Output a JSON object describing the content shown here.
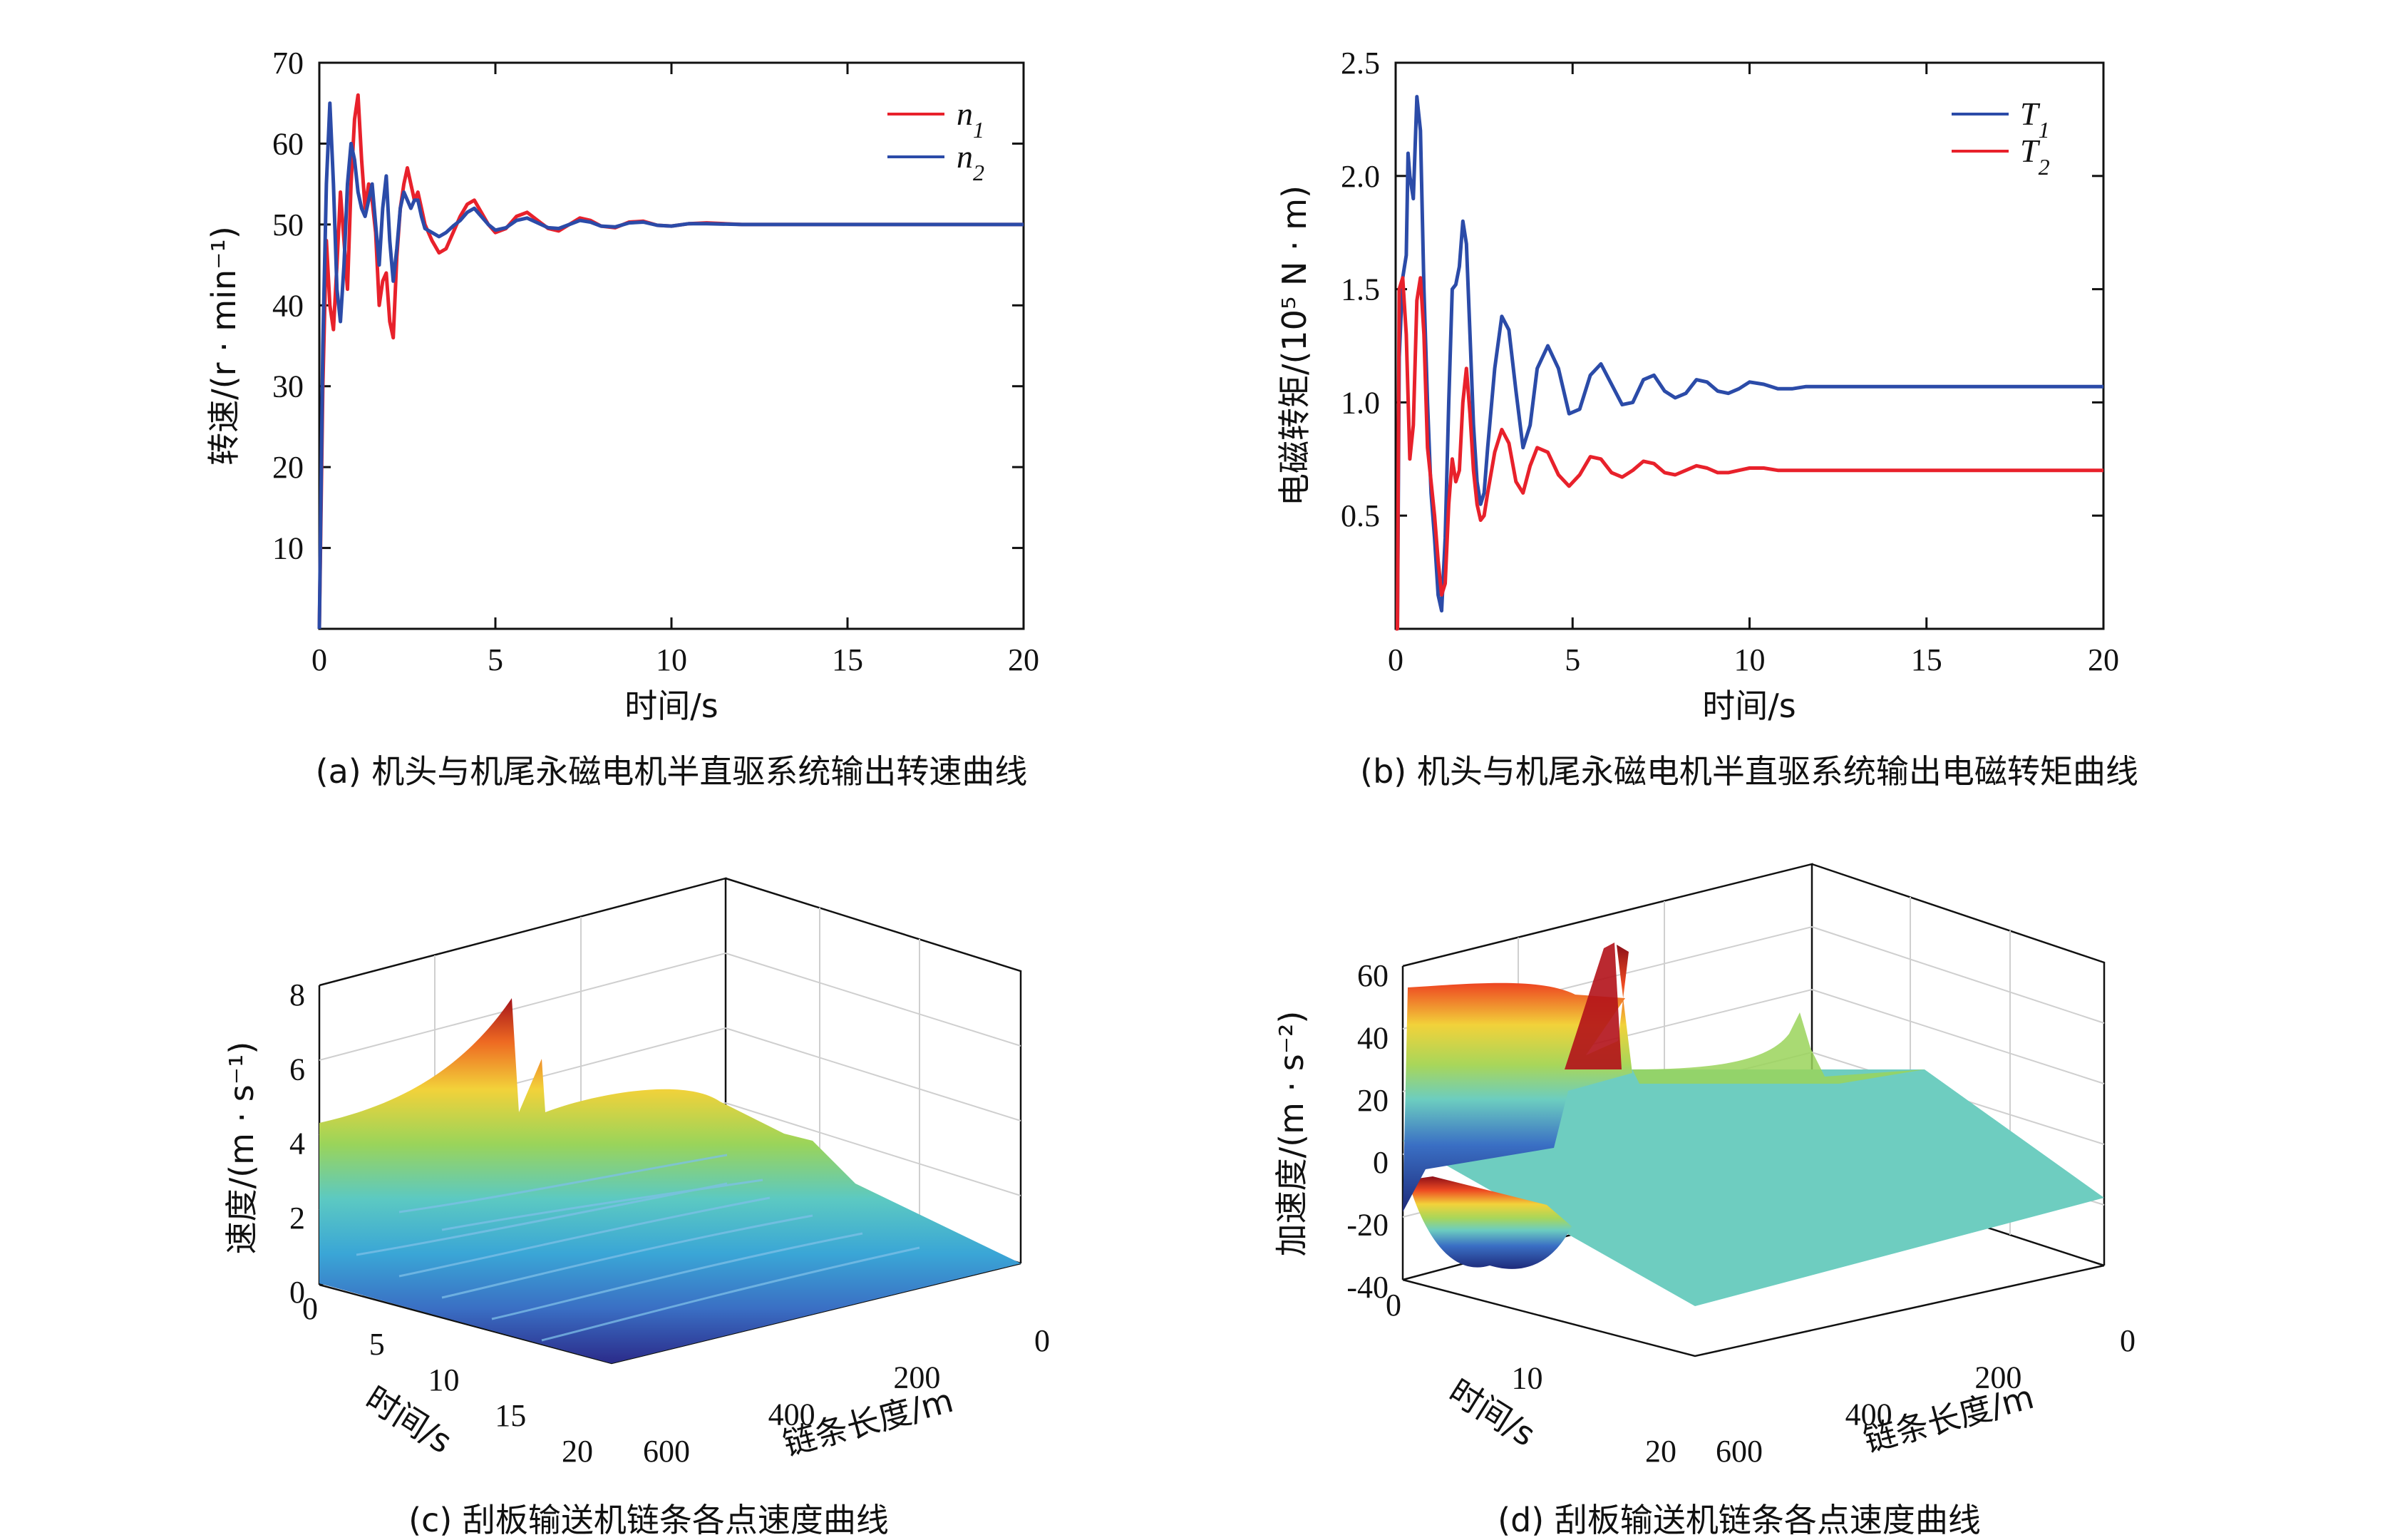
{
  "colors": {
    "red": "#e8212b",
    "blue": "#2b4ba8",
    "axis": "#111111",
    "grid": "#c8c8c8"
  },
  "chart_data": [
    {
      "id": "a",
      "type": "line",
      "caption": "(a) 机头与机尾永磁电机半直驱系统输出转速曲线",
      "xlabel": "时间/s",
      "ylabel": "转速/(r · min⁻¹)",
      "xlim": [
        0,
        20
      ],
      "ylim": [
        0,
        70
      ],
      "xticks": [
        0,
        5,
        10,
        15,
        20
      ],
      "yticks": [
        10,
        20,
        30,
        40,
        50,
        60,
        70
      ],
      "legend_position": "top-right",
      "series": [
        {
          "name": "n",
          "sub": "1",
          "color": "#e8212b",
          "x": [
            0,
            0.1,
            0.2,
            0.3,
            0.4,
            0.5,
            0.6,
            0.7,
            0.8,
            0.9,
            1.0,
            1.1,
            1.2,
            1.3,
            1.4,
            1.5,
            1.6,
            1.7,
            1.8,
            1.9,
            2.0,
            2.1,
            2.2,
            2.3,
            2.4,
            2.5,
            2.6,
            2.7,
            2.8,
            2.9,
            3.0,
            3.2,
            3.4,
            3.6,
            3.8,
            4.0,
            4.2,
            4.4,
            4.6,
            4.8,
            5.0,
            5.3,
            5.6,
            5.9,
            6.2,
            6.5,
            6.8,
            7.1,
            7.4,
            7.7,
            8.0,
            8.4,
            8.8,
            9.2,
            9.6,
            10.0,
            10.5,
            11,
            12,
            13,
            14,
            15,
            16,
            17,
            18,
            19,
            20
          ],
          "y": [
            0,
            30,
            48,
            40,
            37,
            45,
            54,
            48,
            42,
            55,
            63,
            66,
            58,
            52,
            55,
            53,
            49,
            40,
            43,
            44,
            38,
            36,
            46,
            52,
            55,
            57,
            55,
            53,
            54,
            52,
            50,
            48,
            46.5,
            47,
            49,
            51,
            52.5,
            53,
            51.5,
            50,
            49,
            49.5,
            51,
            51.5,
            50.5,
            49.5,
            49.2,
            50,
            50.8,
            50.5,
            49.8,
            49.6,
            50.3,
            50.4,
            49.9,
            49.8,
            50.1,
            50.2,
            50,
            50,
            50,
            50,
            50,
            50,
            50,
            50,
            50
          ]
        },
        {
          "name": "n",
          "sub": "2",
          "color": "#2b4ba8",
          "x": [
            0,
            0.1,
            0.2,
            0.3,
            0.4,
            0.5,
            0.6,
            0.7,
            0.8,
            0.9,
            1.0,
            1.1,
            1.2,
            1.3,
            1.4,
            1.5,
            1.6,
            1.7,
            1.8,
            1.9,
            2.0,
            2.1,
            2.2,
            2.3,
            2.4,
            2.5,
            2.6,
            2.7,
            2.8,
            2.9,
            3.0,
            3.2,
            3.4,
            3.6,
            3.8,
            4.0,
            4.2,
            4.4,
            4.6,
            4.8,
            5.0,
            5.3,
            5.6,
            5.9,
            6.2,
            6.5,
            6.8,
            7.1,
            7.4,
            7.7,
            8.0,
            8.4,
            8.8,
            9.2,
            9.6,
            10.0,
            10.5,
            11,
            12,
            13,
            14,
            15,
            16,
            17,
            18,
            19,
            20
          ],
          "y": [
            0,
            35,
            55,
            65,
            55,
            42,
            38,
            45,
            55,
            60,
            58,
            54,
            52,
            51,
            53,
            55,
            50,
            45,
            52,
            56,
            48,
            43,
            47,
            52,
            54,
            53,
            52,
            53,
            53,
            51,
            49.5,
            49,
            48.5,
            49,
            49.8,
            50.5,
            51.5,
            52,
            51,
            50,
            49.3,
            49.6,
            50.5,
            50.8,
            50.2,
            49.6,
            49.5,
            50,
            50.5,
            50.3,
            49.8,
            49.7,
            50.2,
            50.3,
            49.9,
            49.8,
            50.1,
            50.1,
            50,
            50,
            50,
            50,
            50,
            50,
            50,
            50,
            50
          ]
        }
      ]
    },
    {
      "id": "b",
      "type": "line",
      "caption": "(b) 机头与机尾永磁电机半直驱系统输出电磁转矩曲线",
      "xlabel": "时间/s",
      "ylabel": "电磁转矩/(10⁵ N · m)",
      "xlim": [
        0,
        20
      ],
      "ylim": [
        0,
        2.5
      ],
      "xticks": [
        0,
        5,
        10,
        15,
        20
      ],
      "yticks": [
        0.5,
        1.0,
        1.5,
        2.0,
        2.5
      ],
      "ytick_labels": [
        "0.5",
        "1.0",
        "1.5",
        "2.0",
        "2.5"
      ],
      "legend_position": "top-right",
      "series": [
        {
          "name": "T",
          "sub": "1",
          "color": "#2b4ba8",
          "x": [
            0,
            0.05,
            0.1,
            0.2,
            0.3,
            0.35,
            0.4,
            0.5,
            0.6,
            0.7,
            0.8,
            0.9,
            1.0,
            1.1,
            1.2,
            1.3,
            1.4,
            1.5,
            1.6,
            1.7,
            1.8,
            1.9,
            2.0,
            2.1,
            2.2,
            2.3,
            2.4,
            2.5,
            2.6,
            2.8,
            3.0,
            3.2,
            3.4,
            3.6,
            3.8,
            4.0,
            4.3,
            4.6,
            4.9,
            5.2,
            5.5,
            5.8,
            6.1,
            6.4,
            6.7,
            7.0,
            7.3,
            7.6,
            7.9,
            8.2,
            8.5,
            8.8,
            9.1,
            9.4,
            9.7,
            10.0,
            10.4,
            10.8,
            11.2,
            11.6,
            12,
            13,
            14,
            15,
            16,
            17,
            18,
            19,
            20
          ],
          "y": [
            0,
            0,
            1.2,
            1.55,
            1.65,
            2.1,
            2.0,
            1.9,
            2.35,
            2.2,
            1.5,
            1.0,
            0.6,
            0.4,
            0.15,
            0.08,
            0.4,
            1.0,
            1.5,
            1.52,
            1.6,
            1.8,
            1.7,
            1.3,
            0.9,
            0.65,
            0.55,
            0.6,
            0.8,
            1.15,
            1.38,
            1.32,
            1.05,
            0.8,
            0.9,
            1.15,
            1.25,
            1.15,
            0.95,
            0.97,
            1.12,
            1.17,
            1.08,
            0.99,
            1.0,
            1.1,
            1.12,
            1.05,
            1.02,
            1.04,
            1.1,
            1.09,
            1.05,
            1.04,
            1.06,
            1.09,
            1.08,
            1.06,
            1.06,
            1.07,
            1.07,
            1.07,
            1.07,
            1.07,
            1.07,
            1.07,
            1.07,
            1.07,
            1.07
          ]
        },
        {
          "name": "T",
          "sub": "2",
          "color": "#e8212b",
          "x": [
            0,
            0.05,
            0.1,
            0.2,
            0.3,
            0.4,
            0.5,
            0.6,
            0.7,
            0.8,
            0.9,
            1.0,
            1.1,
            1.2,
            1.3,
            1.4,
            1.5,
            1.6,
            1.7,
            1.8,
            1.9,
            2.0,
            2.1,
            2.2,
            2.3,
            2.4,
            2.5,
            2.6,
            2.8,
            3.0,
            3.2,
            3.4,
            3.6,
            3.8,
            4.0,
            4.3,
            4.6,
            4.9,
            5.2,
            5.5,
            5.8,
            6.1,
            6.4,
            6.7,
            7.0,
            7.3,
            7.6,
            7.9,
            8.2,
            8.5,
            8.8,
            9.1,
            9.4,
            9.7,
            10.0,
            10.4,
            10.8,
            11.2,
            11.6,
            12,
            13,
            14,
            15,
            16,
            17,
            18,
            19,
            20
          ],
          "y": [
            0,
            0,
            1.5,
            1.55,
            1.3,
            0.75,
            0.9,
            1.45,
            1.55,
            1.3,
            0.8,
            0.65,
            0.5,
            0.3,
            0.15,
            0.2,
            0.55,
            0.75,
            0.65,
            0.7,
            1.0,
            1.15,
            0.95,
            0.7,
            0.55,
            0.48,
            0.5,
            0.6,
            0.78,
            0.88,
            0.82,
            0.65,
            0.6,
            0.72,
            0.8,
            0.78,
            0.68,
            0.63,
            0.68,
            0.76,
            0.75,
            0.69,
            0.67,
            0.7,
            0.74,
            0.73,
            0.69,
            0.68,
            0.7,
            0.72,
            0.71,
            0.69,
            0.69,
            0.7,
            0.71,
            0.71,
            0.7,
            0.7,
            0.7,
            0.7,
            0.7,
            0.7,
            0.7,
            0.7,
            0.7,
            0.7,
            0.7,
            0.7
          ]
        }
      ]
    },
    {
      "id": "c",
      "type": "surface",
      "caption": "(c) 刮板输送机链条各点速度曲线",
      "xlabel": "链条长度/m",
      "ylabel": "时间/s",
      "zlabel": "速度/(m · s⁻¹)",
      "xticks": [
        0,
        200,
        400,
        600
      ],
      "yticks": [
        0,
        5,
        10,
        15,
        20
      ],
      "zticks": [
        0,
        2,
        4,
        6,
        8
      ],
      "zlim": [
        0,
        8
      ]
    },
    {
      "id": "d",
      "type": "surface",
      "caption": "(d) 刮板输送机链条各点速度曲线",
      "xlabel": "链条长度/m",
      "ylabel": "时间/s",
      "zlabel": "加速度/(m · s⁻²)",
      "xticks": [
        0,
        200,
        400,
        600
      ],
      "yticks": [
        0,
        10,
        20
      ],
      "zticks": [
        -40,
        -20,
        0,
        20,
        40,
        60
      ],
      "zlim": [
        -40,
        60
      ]
    }
  ]
}
